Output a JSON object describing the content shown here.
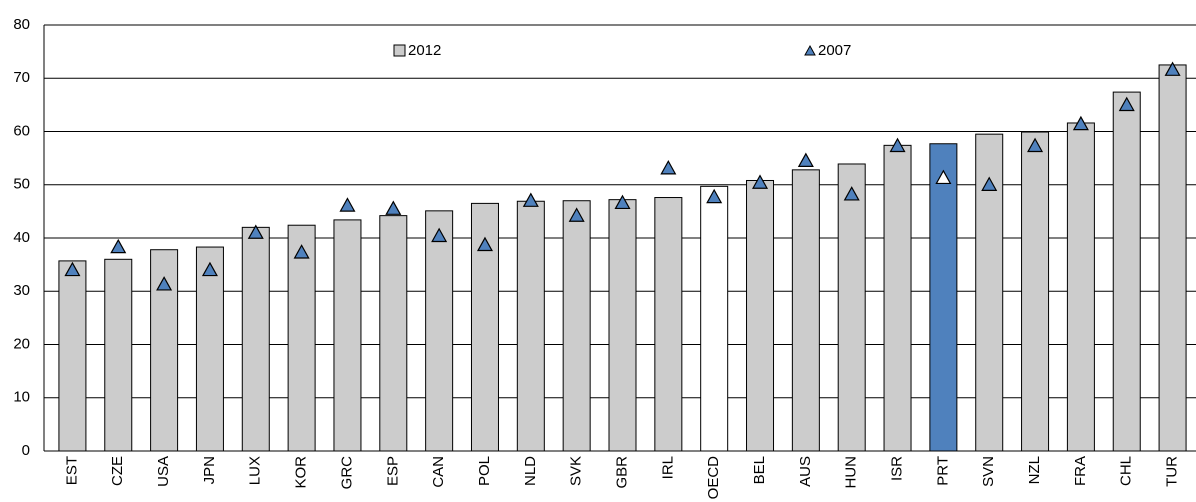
{
  "chart_data": {
    "type": "bar",
    "categories": [
      "EST",
      "CZE",
      "USA",
      "JPN",
      "LUX",
      "KOR",
      "GRC",
      "ESP",
      "CAN",
      "POL",
      "NLD",
      "SVK",
      "GBR",
      "IRL",
      "OECD",
      "BEL",
      "AUS",
      "HUN",
      "ISR",
      "PRT",
      "SVN",
      "NZL",
      "FRA",
      "CHL",
      "TUR"
    ],
    "series": [
      {
        "name": "2012",
        "type": "bar",
        "color": "#cccccc",
        "colors": [
          "#cccccc",
          "#cccccc",
          "#cccccc",
          "#cccccc",
          "#cccccc",
          "#cccccc",
          "#cccccc",
          "#cccccc",
          "#cccccc",
          "#cccccc",
          "#cccccc",
          "#cccccc",
          "#cccccc",
          "#cccccc",
          "#ffffff",
          "#cccccc",
          "#cccccc",
          "#cccccc",
          "#cccccc",
          "#4f81bd",
          "#cccccc",
          "#cccccc",
          "#cccccc",
          "#cccccc",
          "#cccccc"
        ],
        "values": [
          35.7,
          36,
          37.8,
          38.3,
          42,
          42.4,
          43.4,
          44.2,
          45.1,
          46.5,
          46.9,
          47,
          47.2,
          47.6,
          49.7,
          50.8,
          52.8,
          53.9,
          57.4,
          57.7,
          59.5,
          59.9,
          61.6,
          67.4,
          72.5
        ]
      },
      {
        "name": "2007",
        "type": "triangle",
        "color": "#4f81bd",
        "colors": [
          "#4f81bd",
          "#4f81bd",
          "#4f81bd",
          "#4f81bd",
          "#4f81bd",
          "#4f81bd",
          "#4f81bd",
          "#4f81bd",
          "#4f81bd",
          "#4f81bd",
          "#4f81bd",
          "#4f81bd",
          "#4f81bd",
          "#4f81bd",
          "#4f81bd",
          "#4f81bd",
          "#4f81bd",
          "#4f81bd",
          "#4f81bd",
          "#ffffff",
          "#4f81bd",
          "#4f81bd",
          "#4f81bd",
          "#4f81bd",
          "#4f81bd"
        ],
        "values": [
          34,
          38.3,
          31.3,
          34,
          41,
          37.3,
          46.1,
          45.5,
          40.4,
          38.7,
          47,
          44.2,
          46.6,
          53.1,
          47.7,
          50.4,
          54.5,
          48.2,
          57.3,
          51.3,
          50,
          57.3,
          61.4,
          65,
          71.6
        ]
      }
    ],
    "ylim": [
      0,
      80
    ],
    "yticks": [
      0,
      10,
      20,
      30,
      40,
      50,
      60,
      70,
      80
    ],
    "grid": true,
    "legend": "top"
  }
}
